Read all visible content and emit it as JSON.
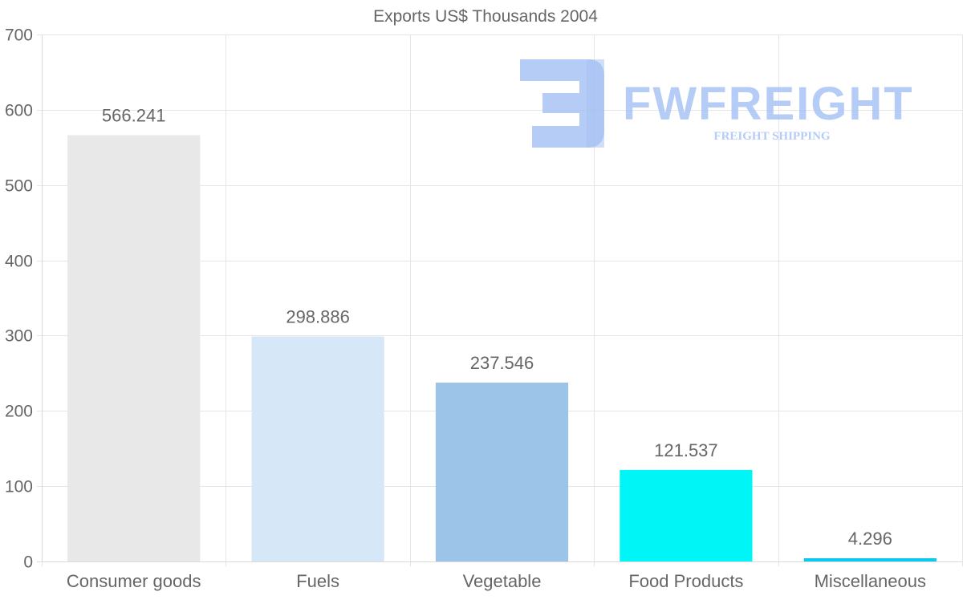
{
  "chart_data": {
    "type": "bar",
    "title": "Exports US$ Thousands 2004",
    "categories": [
      "Consumer goods",
      "Fuels",
      "Vegetable",
      "Food Products",
      "Miscellaneous"
    ],
    "values": [
      566.241,
      298.886,
      237.546,
      121.537,
      4.296
    ],
    "value_labels": [
      "566.241",
      "298.886",
      "237.546",
      "121.537",
      "4.296"
    ],
    "bar_colors": [
      "#e8e8e8",
      "#d6e7f8",
      "#9cc4e8",
      "#00f6f6",
      "#0bc8ee"
    ],
    "ylim": [
      0,
      700
    ],
    "yticks": [
      0,
      100,
      200,
      300,
      400,
      500,
      600,
      700
    ],
    "ytick_labels": [
      "0",
      "100",
      "200",
      "300",
      "400",
      "500",
      "600",
      "700"
    ],
    "xlabel": "",
    "ylabel": "",
    "grid": true,
    "legend": "none"
  },
  "watermark": {
    "brand": "FWFREIGHT",
    "tagline": "FREIGHT SHIPPING",
    "color": "#a9c4f5"
  }
}
